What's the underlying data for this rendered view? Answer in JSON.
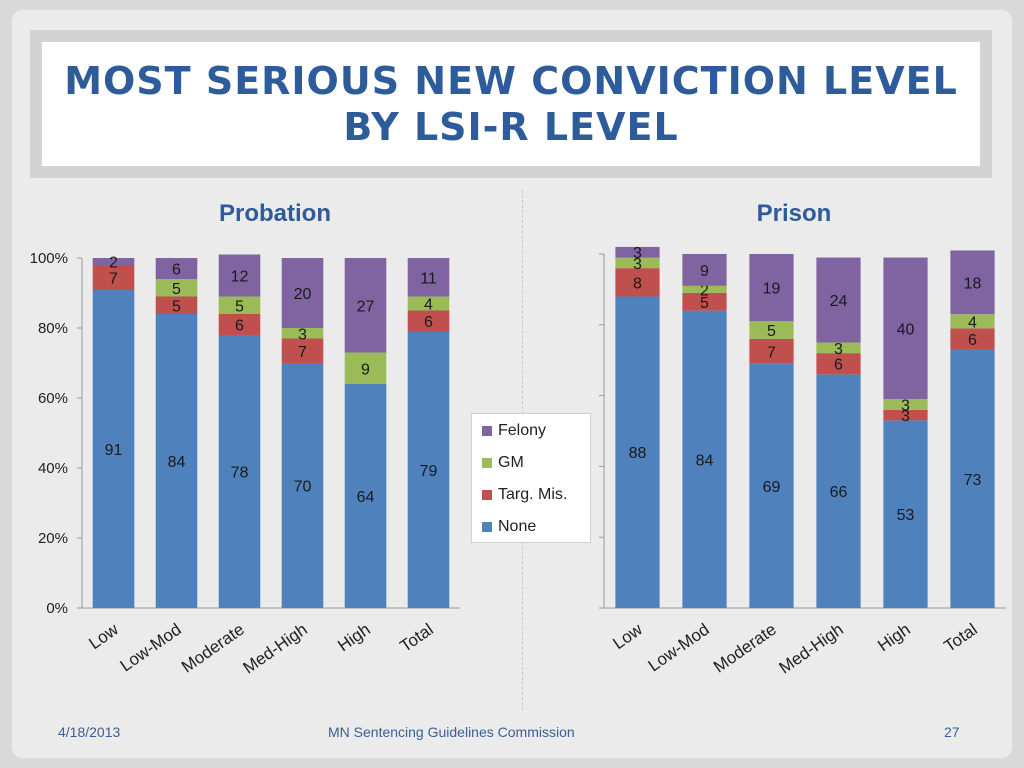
{
  "title": {
    "line1": "MOST SERIOUS NEW CONVICTION LEVEL",
    "line2": "BY LSI-R LEVEL"
  },
  "footer": {
    "date": "4/18/2013",
    "org": "MN Sentencing Guidelines Commission",
    "page": "27"
  },
  "legend": {
    "items": [
      {
        "label": "Felony",
        "color": "#8064a2"
      },
      {
        "label": "GM",
        "color": "#9bbb59"
      },
      {
        "label": "Targ. Mis.",
        "color": "#c0504d"
      },
      {
        "label": "None",
        "color": "#4f81bd"
      }
    ]
  },
  "chart_data": [
    {
      "type": "bar",
      "stacked": true,
      "title": "Probation",
      "categories": [
        "Low",
        "Low-Mod",
        "Moderate",
        "Med-High",
        "High",
        "Total"
      ],
      "y_ticks": [
        "0%",
        "20%",
        "40%",
        "60%",
        "80%",
        "100%"
      ],
      "ylim": [
        0,
        100
      ],
      "series": [
        {
          "name": "None",
          "values": [
            91,
            84,
            78,
            70,
            64,
            79
          ]
        },
        {
          "name": "Targ. Mis.",
          "values": [
            7,
            5,
            6,
            7,
            0,
            6
          ]
        },
        {
          "name": "GM",
          "values": [
            0,
            5,
            5,
            3,
            9,
            4
          ]
        },
        {
          "name": "Felony",
          "values": [
            2,
            6,
            12,
            20,
            27,
            11
          ]
        }
      ]
    },
    {
      "type": "bar",
      "stacked": true,
      "title": "Prison",
      "categories": [
        "Low",
        "Low-Mod",
        "Moderate",
        "Med-High",
        "High",
        "Total"
      ],
      "ylim": [
        0,
        100
      ],
      "series": [
        {
          "name": "None",
          "values": [
            88,
            84,
            69,
            66,
            53,
            73
          ]
        },
        {
          "name": "Targ. Mis.",
          "values": [
            8,
            5,
            7,
            6,
            3,
            6
          ]
        },
        {
          "name": "GM",
          "values": [
            3,
            2,
            5,
            3,
            3,
            4
          ]
        },
        {
          "name": "Felony",
          "values": [
            3,
            9,
            19,
            24,
            40,
            18
          ]
        }
      ]
    }
  ]
}
